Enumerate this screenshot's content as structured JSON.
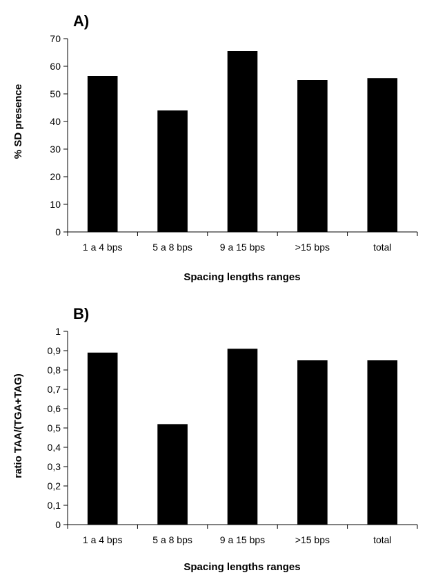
{
  "chart_data": [
    {
      "type": "bar",
      "panel_label": "A)",
      "categories": [
        "1 a 4 bps",
        "5 a 8 bps",
        "9 a 15 bps",
        ">15 bps",
        "total"
      ],
      "values": [
        56.5,
        44,
        65.5,
        55,
        55.7
      ],
      "xlabel": "Spacing lengths ranges",
      "ylabel": "% SD presence",
      "ylim": [
        0,
        70
      ],
      "yticks": [
        "0",
        "10",
        "20",
        "30",
        "40",
        "50",
        "60",
        "70"
      ],
      "grid": false,
      "bar_color": "#000000"
    },
    {
      "type": "bar",
      "panel_label": "B)",
      "categories": [
        "1 a 4 bps",
        "5 a 8 bps",
        "9 a 15 bps",
        ">15 bps",
        "total"
      ],
      "values": [
        0.89,
        0.52,
        0.91,
        0.85,
        0.85
      ],
      "xlabel": "Spacing lengths ranges",
      "ylabel": "ratio TAA/(TGA+TAG)",
      "ylim": [
        0,
        1
      ],
      "yticks": [
        "0",
        "0,1",
        "0,2",
        "0,3",
        "0,4",
        "0,5",
        "0,6",
        "0,7",
        "0,8",
        "0,9",
        "1"
      ],
      "grid": false,
      "bar_color": "#000000"
    }
  ]
}
